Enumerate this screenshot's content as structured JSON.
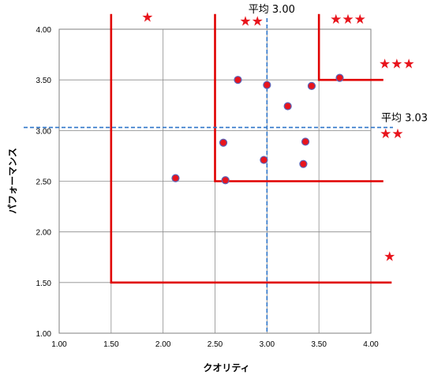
{
  "chart_data": {
    "type": "scatter",
    "xlabel": "クオリティ",
    "ylabel": "パフォーマンス",
    "xlim": [
      1.0,
      4.0
    ],
    "ylim": [
      1.0,
      4.0
    ],
    "x_ticks": [
      "1.00",
      "1.50",
      "2.00",
      "2.50",
      "3.00",
      "3.50",
      "4.00"
    ],
    "y_ticks": [
      "1.00",
      "1.50",
      "2.00",
      "2.50",
      "3.00",
      "3.50",
      "4.00"
    ],
    "grid": true,
    "series": [
      {
        "points": [
          {
            "x": 2.12,
            "y": 2.53
          },
          {
            "x": 2.58,
            "y": 2.88
          },
          {
            "x": 2.6,
            "y": 2.51
          },
          {
            "x": 2.72,
            "y": 3.5
          },
          {
            "x": 2.97,
            "y": 2.71
          },
          {
            "x": 3.0,
            "y": 3.45
          },
          {
            "x": 3.2,
            "y": 3.24
          },
          {
            "x": 3.35,
            "y": 2.67
          },
          {
            "x": 3.37,
            "y": 2.89
          },
          {
            "x": 3.43,
            "y": 3.44
          },
          {
            "x": 3.7,
            "y": 3.52
          }
        ],
        "marker_color": "#e8141c",
        "marker_edge": "#5a63b8"
      }
    ],
    "mean_lines": {
      "x": {
        "value": 3.0,
        "label": "平均 3.00"
      },
      "y": {
        "value": 3.03,
        "label": "平均 3.03"
      },
      "color": "#2e75c9"
    },
    "threshold_lines": [
      {
        "x": 1.5,
        "y": 1.5,
        "x_top": 4.15,
        "x_end": 4.2
      },
      {
        "x": 2.5,
        "y": 2.5,
        "x_top": 4.15,
        "x_end": 4.12
      },
      {
        "x": 3.5,
        "y": 3.5,
        "x_top": 4.15,
        "x_end": 4.12
      }
    ],
    "threshold_color": "#e00000",
    "ratings": [
      {
        "label": "★",
        "x": 1.85,
        "y": 4.12
      },
      {
        "label": "★★",
        "x": 2.85,
        "y": 4.08
      },
      {
        "label": "★★★",
        "x": 3.78,
        "y": 4.1
      },
      {
        "label": "★★★",
        "x": 4.25,
        "y": 3.66
      },
      {
        "label": "★★",
        "x": 4.2,
        "y": 2.97
      },
      {
        "label": "★",
        "x": 4.18,
        "y": 1.76
      }
    ],
    "rating_color": "#e8141c"
  }
}
